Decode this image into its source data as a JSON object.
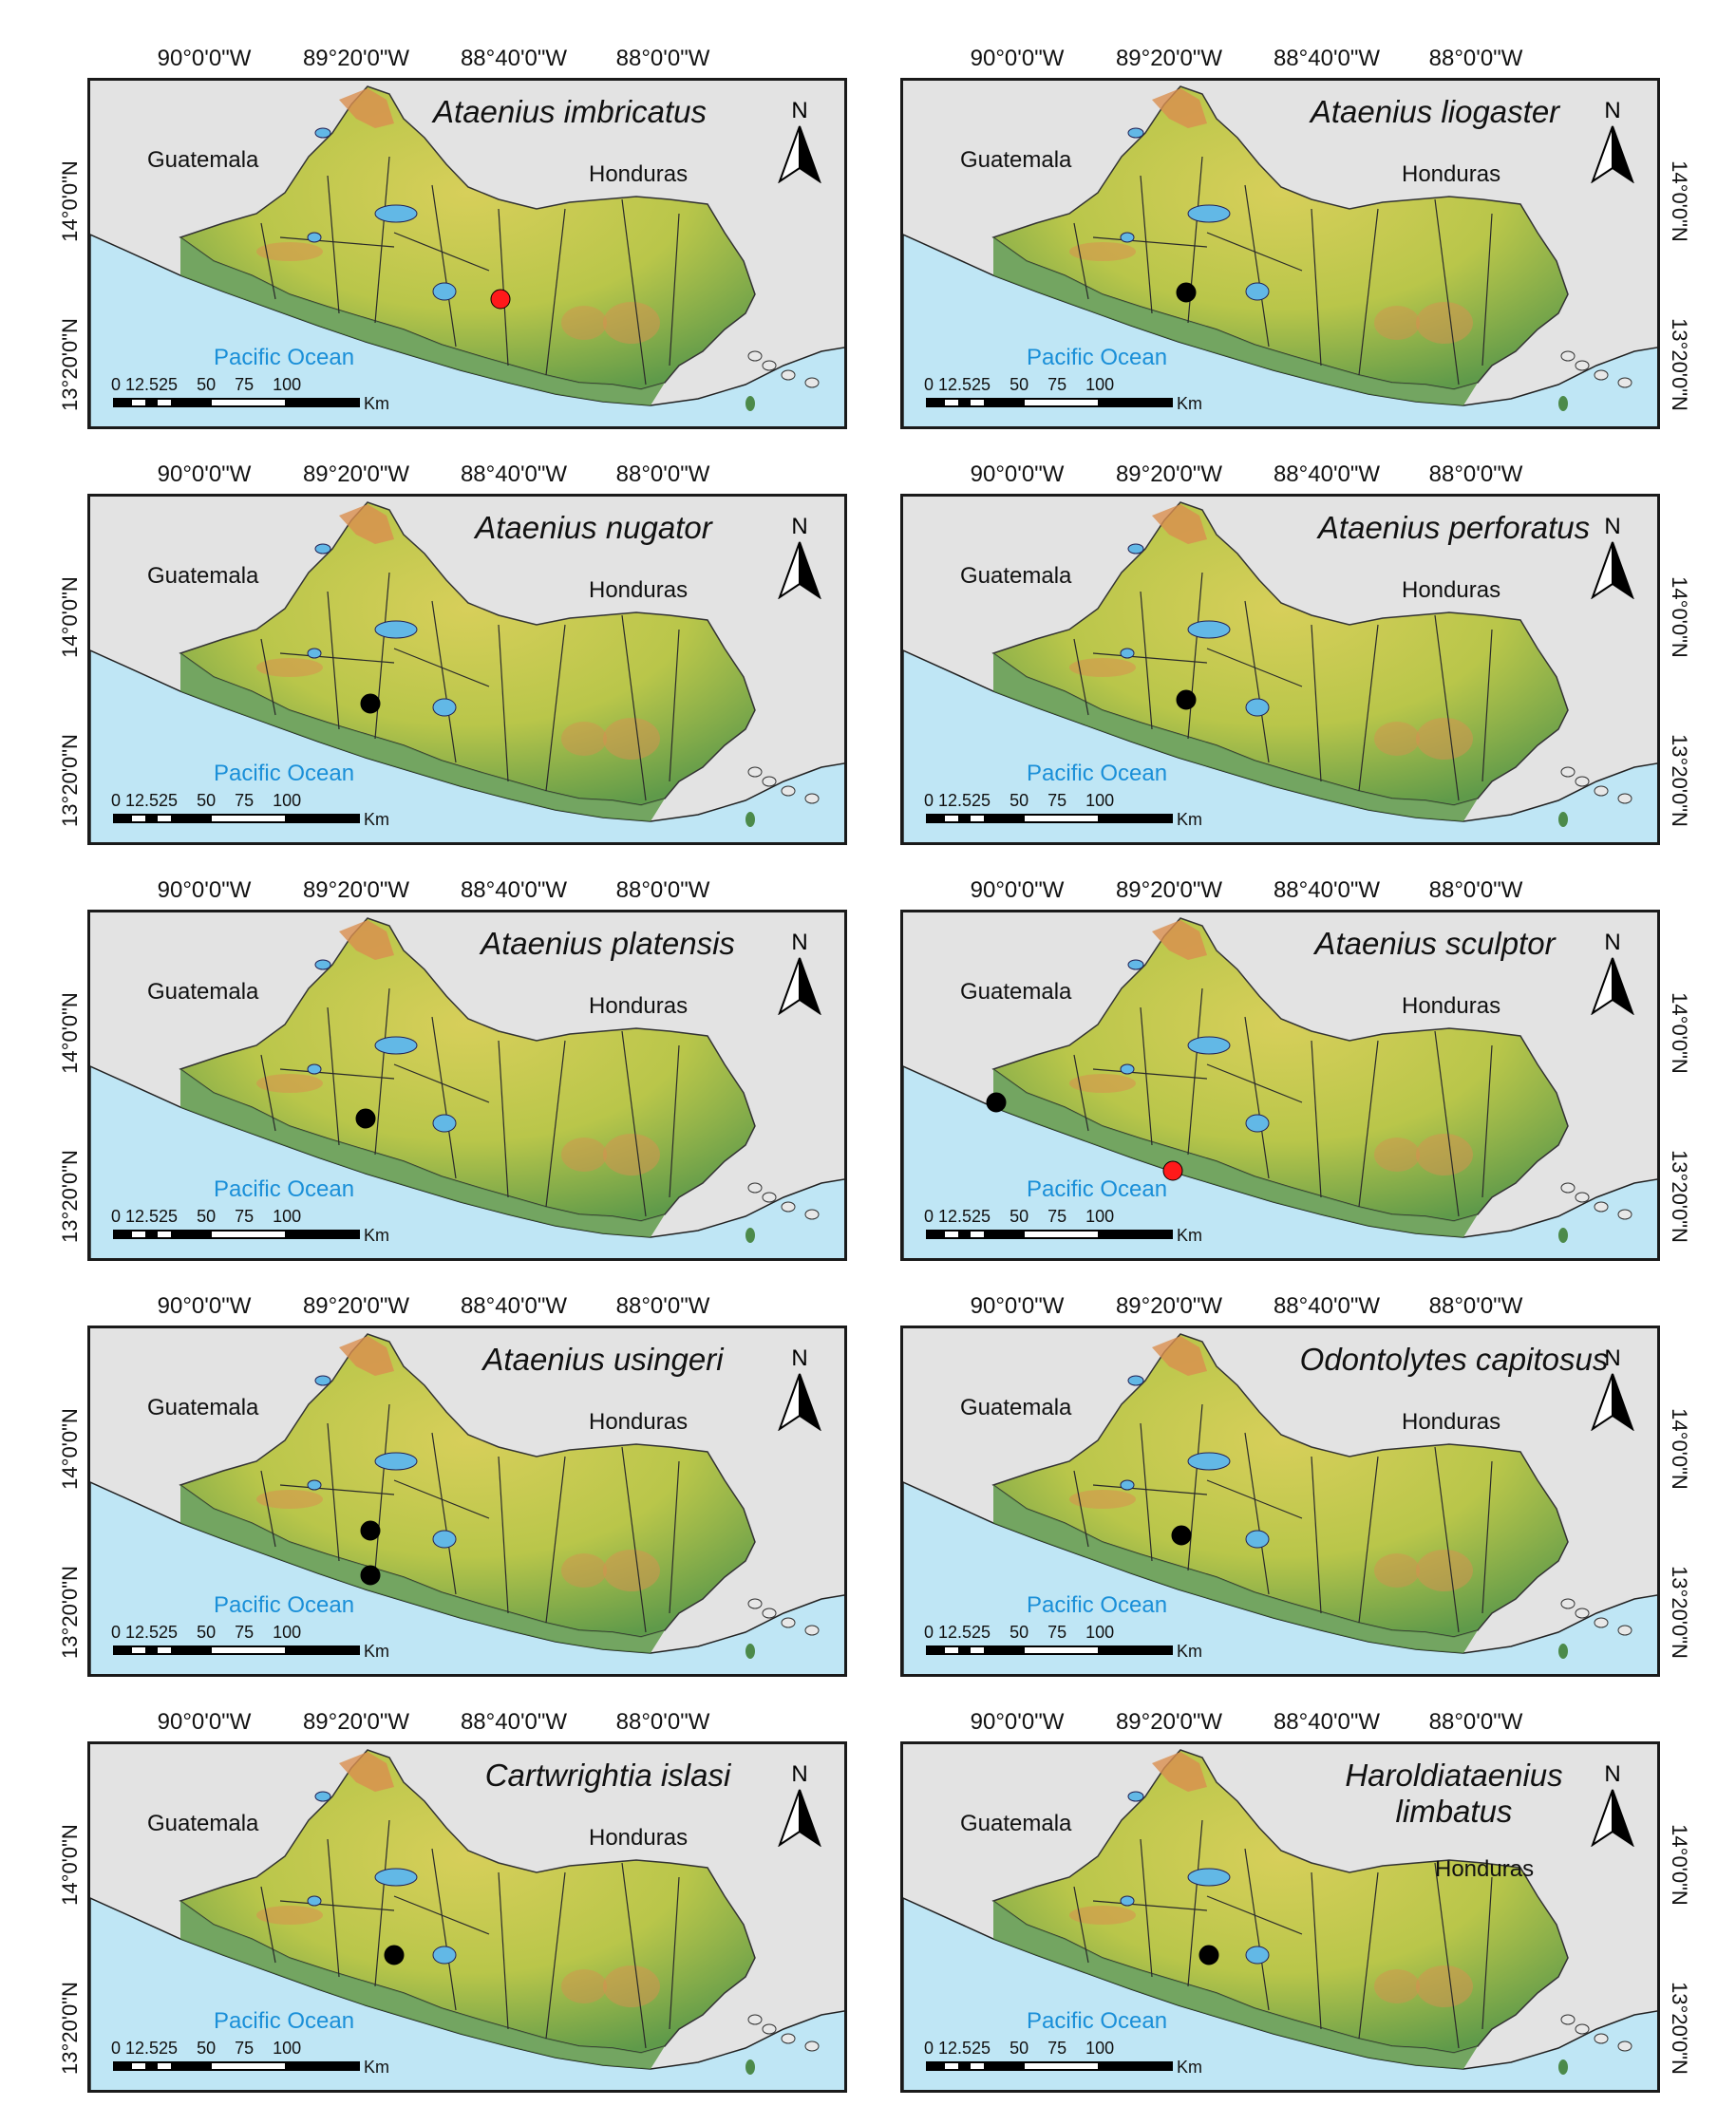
{
  "lon_labels": [
    "90°0'0\"W",
    "89°20'0\"W",
    "88°40'0\"W",
    "88°0'0\"W"
  ],
  "lat_labels": [
    "14°0'0\"N",
    "13°20'0\"N"
  ],
  "country_labels": {
    "guatemala": "Guatemala",
    "honduras": "Honduras",
    "ocean": "Pacific Ocean"
  },
  "scale": {
    "ticks": "0 12.525    50    75    100",
    "unit": "Km"
  },
  "north_label": "N",
  "colors": {
    "ocean": "#bfe6f5",
    "land": "#b9c64a",
    "lowland": "#5f9a4a",
    "highland": "#d98f4f",
    "lake": "#62b8e6",
    "record_black": "#000000",
    "record_red": "#ff1a1a"
  },
  "panels": [
    {
      "title": "Ataenius imbricatus",
      "points": [
        {
          "color": "red"
        }
      ]
    },
    {
      "title": "Ataenius liogaster",
      "points": [
        {
          "color": "black"
        }
      ]
    },
    {
      "title": "Ataenius nugator",
      "points": [
        {
          "color": "black"
        }
      ]
    },
    {
      "title": "Ataenius perforatus",
      "points": [
        {
          "color": "black"
        }
      ]
    },
    {
      "title": "Ataenius platensis",
      "points": [
        {
          "color": "black"
        }
      ]
    },
    {
      "title": "Ataenius sculptor",
      "points": [
        {
          "color": "black"
        },
        {
          "color": "red"
        }
      ]
    },
    {
      "title": "Ataenius usingeri",
      "points": [
        {
          "color": "black"
        },
        {
          "color": "black"
        }
      ]
    },
    {
      "title": "Odontolytes capitosus",
      "points": [
        {
          "color": "black"
        }
      ]
    },
    {
      "title": "Cartwrightia islasi",
      "points": [
        {
          "color": "black"
        }
      ]
    },
    {
      "title": "Haroldiataenius limbatus",
      "title_lines": [
        "Haroldiataenius",
        "limbatus"
      ],
      "points": [
        {
          "color": "black"
        }
      ]
    }
  ]
}
